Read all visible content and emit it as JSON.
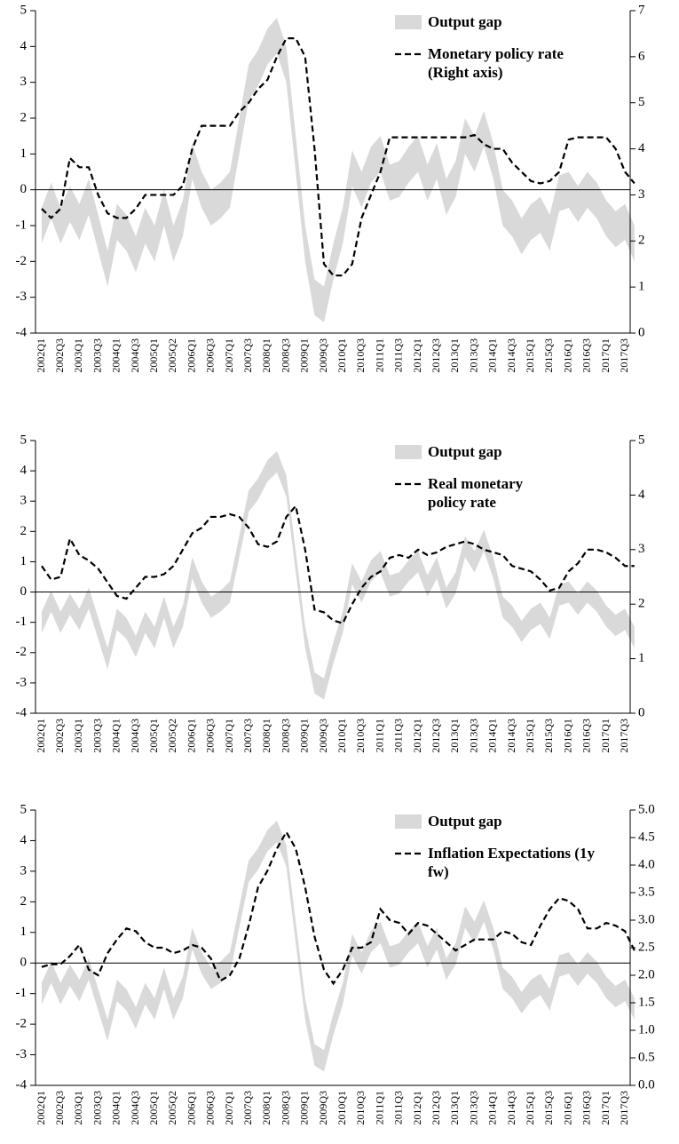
{
  "chart_data": [
    {
      "type": "combo",
      "categories": [
        "2002Q1",
        null,
        "2002Q3",
        null,
        "2003Q1",
        null,
        "2003Q3",
        null,
        "2004Q1",
        null,
        "2004Q3",
        null,
        "2005Q1",
        null,
        "2005Q2",
        null,
        "2006Q1",
        null,
        "2006Q3",
        null,
        "2007Q1",
        null,
        "2007Q3",
        null,
        "2008Q1",
        null,
        "2008Q3",
        null,
        "2009Q1",
        null,
        "2009Q3",
        null,
        "2010Q1",
        null,
        "2010Q3",
        null,
        "2011Q1",
        null,
        "2011Q3",
        null,
        "2012Q1",
        null,
        "2012Q3",
        null,
        "2013Q1",
        null,
        "2013Q3",
        null,
        "2014Q1",
        null,
        "2014Q3",
        null,
        "2015Q1",
        null,
        "2015Q3",
        null,
        "2016Q1",
        null,
        "2016Q3",
        null,
        "2017Q1",
        null,
        "2017Q3",
        null
      ],
      "ylim": [
        -4,
        5
      ],
      "yticks": [
        -4,
        -3,
        -2,
        -1,
        0,
        1,
        2,
        3,
        4,
        5
      ],
      "y2lim": [
        0,
        7
      ],
      "y2ticks": [
        0,
        1,
        2,
        3,
        4,
        5,
        6,
        7
      ],
      "series": [
        {
          "name": "Output gap",
          "color": "#d9d9d9",
          "low": [
            -1.5,
            -0.8,
            -1.5,
            -0.9,
            -1.4,
            -0.7,
            -1.7,
            -2.7,
            -1.4,
            -1.7,
            -2.3,
            -1.5,
            -2.0,
            -1.0,
            -2.0,
            -1.3,
            0.3,
            -0.5,
            -1.0,
            -0.8,
            -0.5,
            1.0,
            2.5,
            2.9,
            3.5,
            3.8,
            3.0,
            0.5,
            -2.0,
            -3.5,
            -3.7,
            -2.5,
            -1.5,
            0.1,
            -0.5,
            0.2,
            0.5,
            -0.3,
            -0.2,
            0.2,
            0.5,
            -0.3,
            0.3,
            -0.7,
            -0.2,
            1.0,
            0.5,
            1.2,
            0.3,
            -1.0,
            -1.3,
            -1.8,
            -1.4,
            -1.2,
            -1.7,
            -0.6,
            -0.5,
            -0.9,
            -0.5,
            -0.8,
            -1.3,
            -1.6,
            -1.4,
            -2.0
          ],
          "high": [
            -0.5,
            0.2,
            -0.5,
            0.1,
            -0.4,
            0.3,
            -0.7,
            -1.7,
            -0.4,
            -0.7,
            -1.3,
            -0.5,
            -1.0,
            0.0,
            -1.0,
            -0.3,
            1.3,
            0.5,
            0.0,
            0.2,
            0.5,
            2.0,
            3.5,
            3.9,
            4.5,
            4.8,
            4.0,
            1.5,
            -1.0,
            -2.5,
            -2.7,
            -1.5,
            -0.5,
            1.1,
            0.5,
            1.2,
            1.5,
            0.7,
            0.8,
            1.2,
            1.5,
            0.7,
            1.3,
            0.3,
            0.8,
            2.0,
            1.5,
            2.2,
            1.3,
            0.0,
            -0.3,
            -0.8,
            -0.4,
            -0.2,
            -0.7,
            0.4,
            0.5,
            0.1,
            0.5,
            0.2,
            -0.3,
            -0.6,
            -0.4,
            -1.0
          ]
        },
        {
          "name": "Monetary policy rate (Right axis)",
          "color": "#000000",
          "axis": "y2",
          "dashed": true,
          "values": [
            2.7,
            2.5,
            2.7,
            3.8,
            3.6,
            3.6,
            3.0,
            2.6,
            2.5,
            2.5,
            2.7,
            3.0,
            3.0,
            3.0,
            3.0,
            3.2,
            4.0,
            4.5,
            4.5,
            4.5,
            4.5,
            4.8,
            5.0,
            5.3,
            5.5,
            6.0,
            6.4,
            6.4,
            6.0,
            4.0,
            1.5,
            1.25,
            1.25,
            1.5,
            2.5,
            3.0,
            3.5,
            4.25,
            4.25,
            4.25,
            4.25,
            4.25,
            4.25,
            4.25,
            4.25,
            4.25,
            4.3,
            4.1,
            4.0,
            4.0,
            3.7,
            3.5,
            3.3,
            3.25,
            3.3,
            3.5,
            4.2,
            4.25,
            4.25,
            4.25,
            4.25,
            4.0,
            3.5,
            3.25
          ]
        }
      ]
    },
    {
      "type": "combo",
      "categories": [
        "2002Q1",
        null,
        "2002Q3",
        null,
        "2003Q1",
        null,
        "2003Q3",
        null,
        "2004Q1",
        null,
        "2004Q3",
        null,
        "2005Q1",
        null,
        "2005Q2",
        null,
        "2006Q1",
        null,
        "2006Q3",
        null,
        "2007Q1",
        null,
        "2007Q3",
        null,
        "2008Q1",
        null,
        "2008Q3",
        null,
        "2009Q1",
        null,
        "2009Q3",
        null,
        "2010Q1",
        null,
        "2010Q3",
        null,
        "2011Q1",
        null,
        "2011Q3",
        null,
        "2012Q1",
        null,
        "2012Q3",
        null,
        "2013Q1",
        null,
        "2013Q3",
        null,
        "2014Q1",
        null,
        "2014Q3",
        null,
        "2015Q1",
        null,
        "2015Q3",
        null,
        "2016Q1",
        null,
        "2016Q3",
        null,
        "2017Q1",
        null,
        "2017Q3",
        null
      ],
      "ylim": [
        -4,
        5
      ],
      "yticks": [
        -4,
        -3,
        -2,
        -1,
        0,
        1,
        2,
        3,
        4,
        5
      ],
      "y2lim": [
        0,
        5
      ],
      "y2ticks": [
        0,
        1,
        2,
        3,
        4,
        5
      ],
      "series": [
        {
          "name": "Output gap",
          "color": "#d9d9d9",
          "low": [
            -1.35,
            -0.65,
            -1.35,
            -0.75,
            -1.25,
            -0.55,
            -1.55,
            -2.55,
            -1.25,
            -1.55,
            -2.15,
            -1.35,
            -1.85,
            -0.85,
            -1.85,
            -1.15,
            0.45,
            -0.35,
            -0.85,
            -0.65,
            -0.35,
            1.15,
            2.65,
            3.05,
            3.65,
            3.95,
            3.15,
            0.65,
            -1.85,
            -3.35,
            -3.55,
            -2.35,
            -1.35,
            0.25,
            -0.35,
            0.35,
            0.65,
            -0.15,
            -0.05,
            0.35,
            0.65,
            -0.15,
            0.45,
            -0.55,
            -0.05,
            1.15,
            0.65,
            1.35,
            0.45,
            -0.85,
            -1.15,
            -1.65,
            -1.25,
            -1.05,
            -1.55,
            -0.45,
            -0.35,
            -0.75,
            -0.35,
            -0.65,
            -1.15,
            -1.45,
            -1.25,
            -1.85
          ],
          "high": [
            -0.65,
            0.05,
            -0.65,
            -0.05,
            -0.55,
            0.15,
            -0.85,
            -1.85,
            -0.55,
            -0.85,
            -1.45,
            -0.65,
            -1.15,
            -0.15,
            -1.15,
            -0.45,
            1.15,
            0.35,
            -0.15,
            0.05,
            0.35,
            1.85,
            3.35,
            3.75,
            4.35,
            4.65,
            3.85,
            1.35,
            -1.15,
            -2.65,
            -2.85,
            -1.65,
            -0.65,
            0.95,
            0.35,
            1.05,
            1.35,
            0.55,
            0.65,
            1.05,
            1.35,
            0.55,
            1.15,
            0.15,
            0.65,
            1.85,
            1.35,
            2.05,
            1.15,
            -0.15,
            -0.45,
            -0.95,
            -0.55,
            -0.35,
            -0.85,
            0.25,
            0.35,
            -0.05,
            0.35,
            0.05,
            -0.45,
            -0.75,
            -0.55,
            -1.15
          ]
        },
        {
          "name": "Real monetary policy rate",
          "color": "#000000",
          "axis": "y2",
          "dashed": true,
          "values": [
            2.7,
            2.45,
            2.5,
            3.2,
            2.9,
            2.8,
            2.65,
            2.4,
            2.15,
            2.1,
            2.3,
            2.5,
            2.5,
            2.55,
            2.7,
            3.0,
            3.3,
            3.4,
            3.6,
            3.6,
            3.65,
            3.6,
            3.4,
            3.1,
            3.05,
            3.15,
            3.6,
            3.8,
            3.0,
            1.9,
            1.85,
            1.7,
            1.65,
            2.0,
            2.3,
            2.5,
            2.6,
            2.85,
            2.9,
            2.85,
            3.0,
            2.9,
            2.95,
            3.05,
            3.1,
            3.15,
            3.1,
            3.0,
            2.95,
            2.9,
            2.7,
            2.65,
            2.6,
            2.45,
            2.25,
            2.3,
            2.6,
            2.75,
            3.0,
            3.0,
            2.95,
            2.85,
            2.7,
            2.7
          ]
        }
      ]
    },
    {
      "type": "combo",
      "categories": [
        "2002Q1",
        null,
        "2002Q3",
        null,
        "2003Q1",
        null,
        "2003Q3",
        null,
        "2004Q1",
        null,
        "2004Q3",
        null,
        "2005Q1",
        null,
        "2005Q2",
        null,
        "2006Q1",
        null,
        "2006Q3",
        null,
        "2007Q1",
        null,
        "2007Q3",
        null,
        "2008Q1",
        null,
        "2008Q3",
        null,
        "2009Q1",
        null,
        "2009Q3",
        null,
        "2010Q1",
        null,
        "2010Q3",
        null,
        "2011Q1",
        null,
        "2011Q3",
        null,
        "2012Q1",
        null,
        "2012Q3",
        null,
        "2013Q1",
        null,
        "2013Q3",
        null,
        "2014Q1",
        null,
        "2014Q3",
        null,
        "2015Q1",
        null,
        "2015Q3",
        null,
        "2016Q1",
        null,
        "2016Q3",
        null,
        "2017Q1",
        null,
        "2017Q3",
        null
      ],
      "ylim": [
        -4,
        5
      ],
      "yticks": [
        -4,
        -3,
        -2,
        -1,
        0,
        1,
        2,
        3,
        4,
        5
      ],
      "y2lim": [
        0,
        5
      ],
      "y2ticks": [
        {
          "value": 0,
          "label": "0.0"
        },
        0.5,
        {
          "value": 1,
          "label": "1.0"
        },
        1.5,
        {
          "value": 2,
          "label": "2.0"
        },
        2.5,
        {
          "value": 3,
          "label": "3.0"
        },
        3.5,
        {
          "value": 4,
          "label": "4.0"
        },
        4.5,
        {
          "value": 5,
          "label": "5.0"
        }
      ],
      "series": [
        {
          "name": "Output gap",
          "color": "#d9d9d9",
          "low": [
            -1.35,
            -0.65,
            -1.35,
            -0.75,
            -1.25,
            -0.55,
            -1.55,
            -2.55,
            -1.25,
            -1.55,
            -2.15,
            -1.35,
            -1.85,
            -0.85,
            -1.85,
            -1.15,
            0.45,
            -0.35,
            -0.85,
            -0.65,
            -0.35,
            1.15,
            2.65,
            3.05,
            3.65,
            3.95,
            3.15,
            0.65,
            -1.85,
            -3.35,
            -3.55,
            -2.35,
            -1.35,
            0.25,
            -0.35,
            0.35,
            0.65,
            -0.15,
            -0.05,
            0.35,
            0.65,
            -0.15,
            0.45,
            -0.55,
            -0.05,
            1.15,
            0.65,
            1.35,
            0.45,
            -0.85,
            -1.15,
            -1.65,
            -1.25,
            -1.05,
            -1.55,
            -0.45,
            -0.35,
            -0.75,
            -0.35,
            -0.65,
            -1.15,
            -1.45,
            -1.25,
            -1.85
          ],
          "high": [
            -0.65,
            0.05,
            -0.65,
            -0.05,
            -0.55,
            0.15,
            -0.85,
            -1.85,
            -0.55,
            -0.85,
            -1.45,
            -0.65,
            -1.15,
            -0.15,
            -1.15,
            -0.45,
            1.15,
            0.35,
            -0.15,
            0.05,
            0.35,
            1.85,
            3.35,
            3.75,
            4.35,
            4.65,
            3.85,
            1.35,
            -1.15,
            -2.65,
            -2.85,
            -1.65,
            -0.65,
            0.95,
            0.35,
            1.05,
            1.35,
            0.55,
            0.65,
            1.05,
            1.35,
            0.55,
            1.15,
            0.15,
            0.65,
            1.85,
            1.35,
            2.05,
            1.15,
            -0.15,
            -0.45,
            -0.95,
            -0.55,
            -0.35,
            -0.85,
            0.25,
            0.35,
            -0.05,
            0.35,
            0.05,
            -0.45,
            -0.75,
            -0.55,
            -1.15
          ]
        },
        {
          "name": "Inflation Expectations (1y fw)",
          "color": "#000000",
          "axis": "y2",
          "dashed": true,
          "values": [
            2.15,
            2.2,
            2.2,
            2.35,
            2.55,
            2.1,
            2.0,
            2.4,
            2.65,
            2.85,
            2.8,
            2.6,
            2.5,
            2.5,
            2.4,
            2.45,
            2.55,
            2.5,
            2.3,
            1.9,
            2.0,
            2.3,
            2.9,
            3.6,
            3.9,
            4.3,
            4.6,
            4.3,
            3.6,
            2.7,
            2.1,
            1.85,
            2.1,
            2.5,
            2.5,
            2.6,
            3.2,
            3.0,
            2.95,
            2.75,
            2.95,
            2.9,
            2.75,
            2.6,
            2.45,
            2.55,
            2.65,
            2.65,
            2.65,
            2.8,
            2.75,
            2.6,
            2.55,
            2.9,
            3.2,
            3.4,
            3.35,
            3.2,
            2.85,
            2.85,
            2.95,
            2.9,
            2.8,
            2.45
          ]
        }
      ]
    }
  ]
}
